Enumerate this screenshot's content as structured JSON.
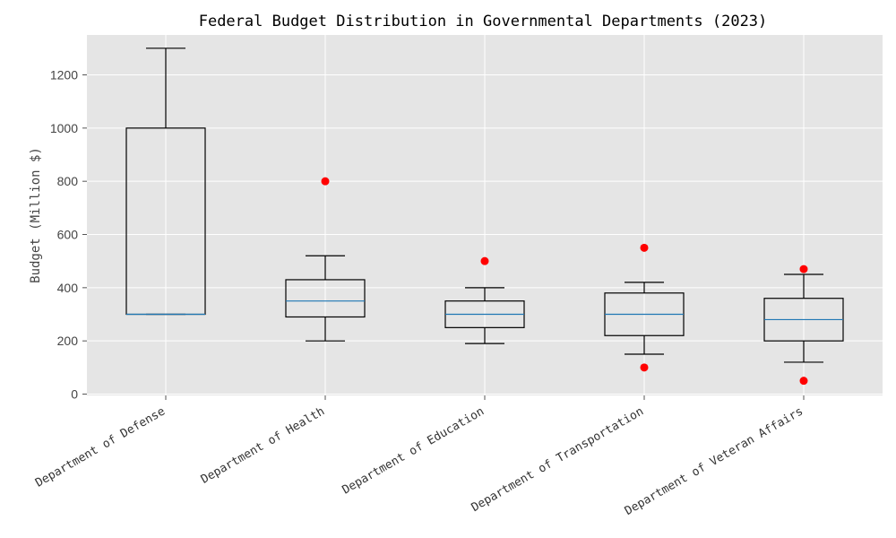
{
  "colors": {
    "plot_background": "#e5e5e5",
    "grid": "#ffffff",
    "box_edge": "#000000",
    "median": "#1f77b4",
    "outlier": "#ff0000"
  },
  "chart_data": {
    "type": "box",
    "title": "Federal Budget Distribution in Governmental Departments (2023)",
    "xlabel": "",
    "ylabel": "Budget (Million $)",
    "ylim": [
      -5,
      1350
    ],
    "yticks": [
      0,
      200,
      400,
      600,
      800,
      1000,
      1200
    ],
    "grid": true,
    "categories": [
      "Department of Defense",
      "Department of Health",
      "Department of Education",
      "Department of Transportation",
      "Department of Veteran Affairs"
    ],
    "boxes": [
      {
        "min": 300,
        "q1": 300,
        "median": 300,
        "q3": 1000,
        "max": 1300,
        "outliers": []
      },
      {
        "min": 200,
        "q1": 290,
        "median": 350,
        "q3": 430,
        "max": 520,
        "outliers": [
          800
        ]
      },
      {
        "min": 190,
        "q1": 250,
        "median": 300,
        "q3": 350,
        "max": 400,
        "outliers": [
          500
        ]
      },
      {
        "min": 150,
        "q1": 220,
        "median": 300,
        "q3": 380,
        "max": 420,
        "outliers": [
          550,
          100
        ]
      },
      {
        "min": 120,
        "q1": 200,
        "median": 280,
        "q3": 360,
        "max": 450,
        "outliers": [
          470,
          50
        ]
      }
    ]
  }
}
